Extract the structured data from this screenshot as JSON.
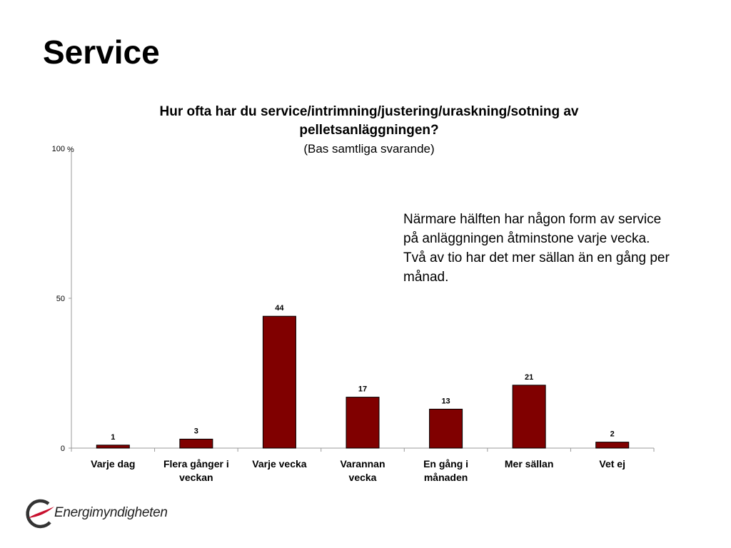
{
  "slide": {
    "title": "Service",
    "annotation": "Närmare hälften har någon form av service på anläggningen åtminstone varje vecka. Två av tio har det mer sällan än en gång per månad.",
    "logo_text": "Energimyndigheten"
  },
  "chart_data": {
    "type": "bar",
    "title": "Hur ofta har du service/intrimning/justering/uraskning/sotning  av pelletsanläggningen?",
    "subtitle": "(Bas samtliga svarande)",
    "unit_label": "%",
    "categories": [
      "Varje dag",
      "Flera gånger i veckan",
      "Varje vecka",
      "Varannan vecka",
      "En gång i månaden",
      "Mer sällan",
      "Vet ej"
    ],
    "category_lines": [
      [
        "Varje dag"
      ],
      [
        "Flera gånger i",
        "veckan"
      ],
      [
        "Varje vecka"
      ],
      [
        "Varannan",
        "vecka"
      ],
      [
        "En gång i",
        "månaden"
      ],
      [
        "Mer sällan"
      ],
      [
        "Vet ej"
      ]
    ],
    "values": [
      1,
      3,
      44,
      17,
      13,
      21,
      2
    ],
    "ylim": [
      0,
      100
    ],
    "yticks": [
      0,
      50,
      100
    ],
    "grid": false,
    "data_labels": true,
    "bar_color": "#800000"
  }
}
